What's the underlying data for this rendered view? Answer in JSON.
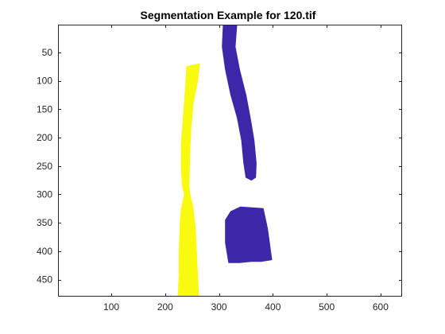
{
  "chart_data": {
    "type": "image",
    "title": "Segmentation Example for 120.tif",
    "xlabel": "",
    "ylabel": "",
    "xlim": [
      1,
      640
    ],
    "ylim": [
      1,
      480
    ],
    "y_direction": "reversed",
    "grid": false,
    "x_ticks": [
      100,
      200,
      300,
      400,
      500,
      600
    ],
    "y_ticks": [
      50,
      100,
      150,
      200,
      250,
      300,
      350,
      400,
      450
    ],
    "background_color": "#ffffff",
    "regions": [
      {
        "id": "yellow-left",
        "color": "#f9fb0e",
        "polygon": [
          [
            240,
            75
          ],
          [
            252,
            72
          ],
          [
            264,
            70
          ],
          [
            260,
            100
          ],
          [
            252,
            140
          ],
          [
            248,
            180
          ],
          [
            246,
            220
          ],
          [
            245,
            255
          ],
          [
            244,
            285
          ],
          [
            246,
            300
          ],
          [
            252,
            325
          ],
          [
            256,
            360
          ],
          [
            258,
            400
          ],
          [
            260,
            440
          ],
          [
            262,
            480
          ],
          [
            224,
            480
          ],
          [
            226,
            440
          ],
          [
            226,
            400
          ],
          [
            228,
            350
          ],
          [
            230,
            325
          ],
          [
            236,
            300
          ],
          [
            232,
            285
          ],
          [
            230,
            255
          ],
          [
            230,
            210
          ],
          [
            234,
            160
          ],
          [
            238,
            110
          ]
        ]
      },
      {
        "id": "blue-top",
        "color": "#3e26a8",
        "polygon": [
          [
            308,
            1
          ],
          [
            333,
            1
          ],
          [
            330,
            40
          ],
          [
            338,
            80
          ],
          [
            350,
            125
          ],
          [
            358,
            165
          ],
          [
            365,
            205
          ],
          [
            369,
            245
          ],
          [
            368,
            270
          ],
          [
            360,
            275
          ],
          [
            350,
            270
          ],
          [
            346,
            245
          ],
          [
            342,
            205
          ],
          [
            334,
            165
          ],
          [
            322,
            125
          ],
          [
            312,
            80
          ],
          [
            306,
            40
          ]
        ]
      },
      {
        "id": "blue-bottom",
        "color": "#3e26a8",
        "polygon": [
          [
            312,
            345
          ],
          [
            322,
            330
          ],
          [
            340,
            322
          ],
          [
            382,
            325
          ],
          [
            390,
            360
          ],
          [
            398,
            415
          ],
          [
            378,
            418
          ],
          [
            360,
            418
          ],
          [
            338,
            420
          ],
          [
            318,
            420
          ],
          [
            312,
            385
          ]
        ]
      }
    ]
  }
}
